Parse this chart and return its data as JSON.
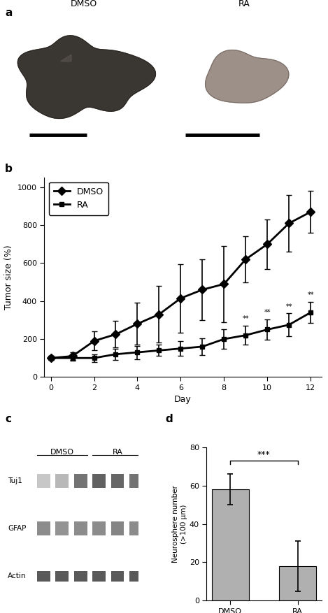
{
  "panel_b": {
    "days": [
      0,
      1,
      2,
      3,
      4,
      5,
      6,
      7,
      8,
      9,
      10,
      11,
      12
    ],
    "dmso_mean": [
      100,
      110,
      190,
      225,
      280,
      330,
      415,
      460,
      490,
      620,
      700,
      810,
      870
    ],
    "dmso_err": [
      10,
      20,
      50,
      70,
      110,
      150,
      180,
      160,
      200,
      120,
      130,
      150,
      110
    ],
    "ra_mean": [
      100,
      100,
      100,
      120,
      130,
      140,
      150,
      160,
      200,
      220,
      250,
      275,
      340
    ],
    "ra_err": [
      10,
      15,
      20,
      30,
      35,
      30,
      40,
      45,
      50,
      50,
      55,
      60,
      55
    ],
    "sig_days": [
      9,
      10,
      11,
      12
    ],
    "ylabel": "Tumor size (%)",
    "xlabel": "Day",
    "ylim": [
      0,
      1050
    ],
    "yticks": [
      0,
      200,
      400,
      600,
      800,
      1000
    ],
    "xlim": [
      -0.3,
      12.5
    ],
    "xticks": [
      0,
      2,
      4,
      6,
      8,
      10,
      12
    ]
  },
  "panel_d": {
    "categories": [
      "DMSO",
      "RA"
    ],
    "values": [
      58,
      18
    ],
    "errors": [
      8,
      13
    ],
    "ylabel": "Neurosphere number\n(>100 μm)",
    "ylim": [
      0,
      80
    ],
    "yticks": [
      0,
      20,
      40,
      60,
      80
    ],
    "bar_color": "#b0b0b0",
    "sig_label": "***"
  },
  "line_color": "#000000",
  "markersize_dmso": 6,
  "markersize_ra": 5,
  "linewidth": 2.0,
  "capsize": 3,
  "elinewidth": 1.2,
  "bg_color_a": "#d8d8d8",
  "tumor_dmso_color": "#3a3a3a",
  "tumor_ra_color": "#b0a8a0",
  "tumor_ra_bg": "#c8c4bc"
}
